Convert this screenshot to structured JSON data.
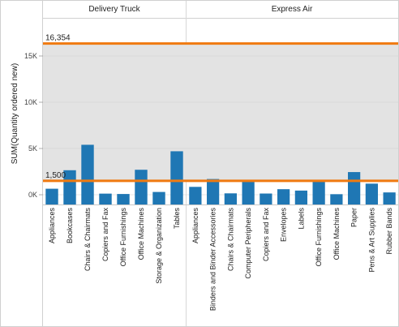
{
  "chart_data": {
    "type": "bar",
    "ylabel": "SUM(Quantity ordered new)",
    "ylim": [
      -1000,
      18000
    ],
    "y_ticks": [
      {
        "value": 0,
        "label": "0K"
      },
      {
        "value": 5000,
        "label": "5K"
      },
      {
        "value": 10000,
        "label": "10K"
      },
      {
        "value": 15000,
        "label": "15K"
      }
    ],
    "bar_color": "#1f77b4",
    "reference_line_color": "#f07a10",
    "band_color": "#e3e3e3",
    "reference_lines": [
      {
        "value": 16354,
        "label": "16,354"
      },
      {
        "value": 1500,
        "label": "1,500"
      }
    ],
    "panels": [
      {
        "name": "Delivery Truck",
        "categories": [
          "Appliances",
          "Bookcases",
          "Chairs & Chairmats",
          "Copiers and Fax",
          "Office Furnishings",
          "Office Machines",
          "Storage & Organization",
          "Tables"
        ],
        "values": [
          650,
          2650,
          5400,
          120,
          80,
          2700,
          300,
          4700
        ]
      },
      {
        "name": "Express Air",
        "categories": [
          "Appliances",
          "Binders and Binder Accessories",
          "Chairs & Chairmats",
          "Computer Peripherals",
          "Copiers and Fax",
          "Envelopes",
          "Labels",
          "Office Furnishings",
          "Office Machines",
          "Paper",
          "Pens & Art Supplies",
          "Rubber Bands"
        ],
        "values": [
          850,
          1700,
          150,
          1400,
          130,
          600,
          450,
          1500,
          60,
          2450,
          1200,
          250
        ]
      }
    ]
  }
}
